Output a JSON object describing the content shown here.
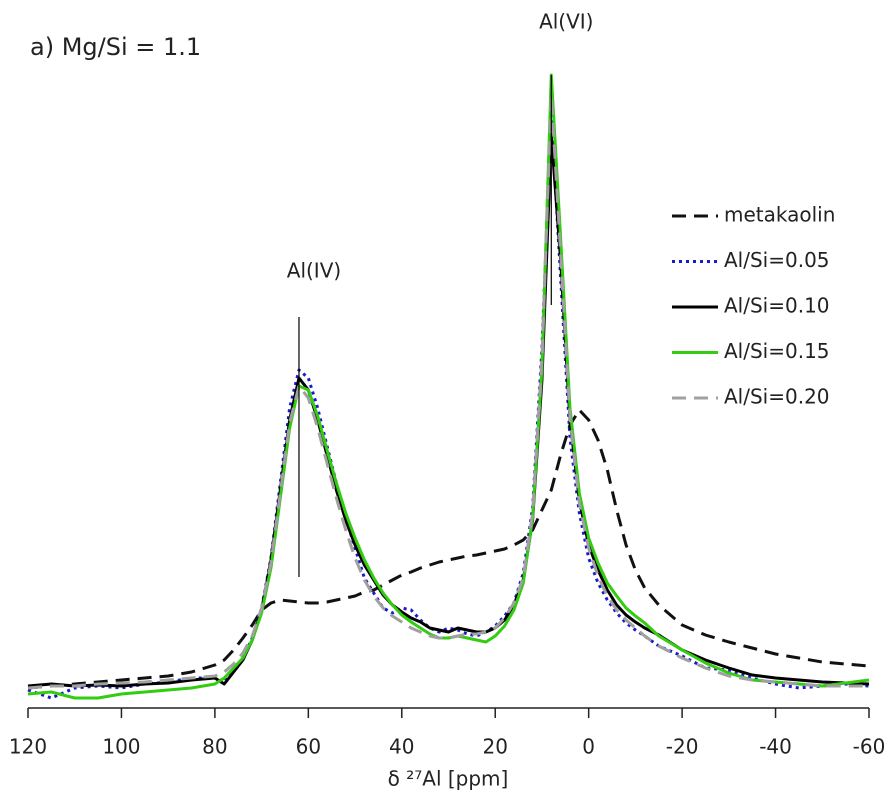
{
  "chart_data": {
    "type": "line",
    "title": "a) Mg/Si = 1.1",
    "x_label": "δ ²⁷Al [ppm]",
    "xlim": [
      120,
      -60
    ],
    "xticks": [
      120,
      100,
      80,
      60,
      40,
      20,
      0,
      -20,
      -40,
      -60
    ],
    "ylim": [
      0,
      650
    ],
    "legend": "upper right",
    "annotations": [
      {
        "text": "Al(IV)",
        "x": 62
      },
      {
        "text": "Al(VI)",
        "x": 8
      }
    ],
    "x": [
      120,
      115,
      110,
      105,
      100,
      95,
      90,
      85,
      80,
      78,
      76,
      74,
      72,
      70,
      68,
      66,
      64,
      62,
      60,
      58,
      56,
      54,
      52,
      50,
      48,
      46,
      44,
      42,
      40,
      38,
      36,
      34,
      32,
      30,
      28,
      26,
      24,
      22,
      20,
      18,
      16,
      14,
      12,
      10,
      8,
      6,
      4,
      2,
      0,
      -2,
      -4,
      -6,
      -8,
      -10,
      -12,
      -15,
      -20,
      -25,
      -30,
      -35,
      -40,
      -45,
      -50,
      -55,
      -60
    ],
    "series": [
      {
        "name": "metakaolin",
        "color": "#111111",
        "linestyle": "dashed",
        "values": [
          20,
          22,
          24,
          26,
          28,
          30,
          32,
          36,
          43,
          48,
          58,
          70,
          83,
          98,
          105,
          108,
          107,
          106,
          105,
          105,
          106,
          108,
          110,
          112,
          116,
          118,
          123,
          128,
          133,
          136,
          140,
          143,
          146,
          148,
          150,
          152,
          153,
          155,
          157,
          159,
          163,
          168,
          178,
          198,
          218,
          253,
          283,
          298,
          288,
          268,
          238,
          198,
          163,
          138,
          120,
          103,
          83,
          73,
          66,
          60,
          54,
          50,
          46,
          44,
          42
        ]
      },
      {
        "name": "Al/Si=0.05",
        "color": "#1a1acc",
        "linestyle": "dotted",
        "values": [
          18,
          10,
          20,
          22,
          20,
          24,
          26,
          30,
          30,
          26,
          38,
          50,
          70,
          100,
          150,
          225,
          300,
          338,
          330,
          300,
          262,
          225,
          190,
          160,
          130,
          115,
          100,
          95,
          100,
          98,
          88,
          80,
          76,
          80,
          78,
          74,
          72,
          76,
          82,
          92,
          105,
          135,
          200,
          360,
          593,
          430,
          270,
          195,
          150,
          125,
          108,
          95,
          85,
          78,
          72,
          62,
          52,
          40,
          38,
          30,
          24,
          20,
          22,
          24,
          22
        ]
      },
      {
        "name": "Al/Si=0.10",
        "color": "#000000",
        "linestyle": "solid",
        "values": [
          22,
          24,
          22,
          23,
          22,
          24,
          25,
          28,
          30,
          24,
          36,
          48,
          68,
          98,
          148,
          218,
          288,
          330,
          318,
          288,
          253,
          218,
          188,
          163,
          143,
          128,
          113,
          103,
          96,
          90,
          86,
          80,
          78,
          76,
          80,
          78,
          76,
          76,
          80,
          88,
          103,
          128,
          188,
          328,
          573,
          448,
          288,
          208,
          163,
          138,
          118,
          103,
          93,
          86,
          80,
          73,
          58,
          48,
          40,
          33,
          30,
          28,
          26,
          25,
          24
        ]
      },
      {
        "name": "Al/Si=0.15",
        "color": "#33cc11",
        "linestyle": "solid",
        "values": [
          14,
          16,
          10,
          10,
          14,
          16,
          18,
          20,
          24,
          30,
          40,
          50,
          68,
          95,
          140,
          210,
          280,
          322,
          318,
          292,
          258,
          225,
          195,
          170,
          148,
          130,
          115,
          103,
          93,
          86,
          80,
          74,
          70,
          70,
          72,
          70,
          68,
          66,
          72,
          82,
          98,
          125,
          190,
          340,
          633,
          470,
          300,
          215,
          170,
          145,
          125,
          112,
          100,
          92,
          85,
          72,
          58,
          45,
          35,
          28,
          26,
          24,
          22,
          25,
          28
        ]
      },
      {
        "name": "Al/Si=0.20",
        "color": "#a0a0a0",
        "linestyle": "dashed",
        "values": [
          20,
          22,
          22,
          24,
          25,
          26,
          28,
          30,
          32,
          36,
          44,
          55,
          72,
          100,
          145,
          215,
          285,
          322,
          310,
          280,
          245,
          210,
          178,
          150,
          128,
          112,
          100,
          92,
          86,
          80,
          76,
          72,
          70,
          70,
          72,
          74,
          74,
          76,
          80,
          90,
          105,
          130,
          195,
          350,
          613,
          455,
          290,
          205,
          160,
          132,
          112,
          98,
          88,
          80,
          72,
          62,
          50,
          40,
          32,
          28,
          26,
          24,
          22,
          22,
          22
        ]
      }
    ]
  }
}
